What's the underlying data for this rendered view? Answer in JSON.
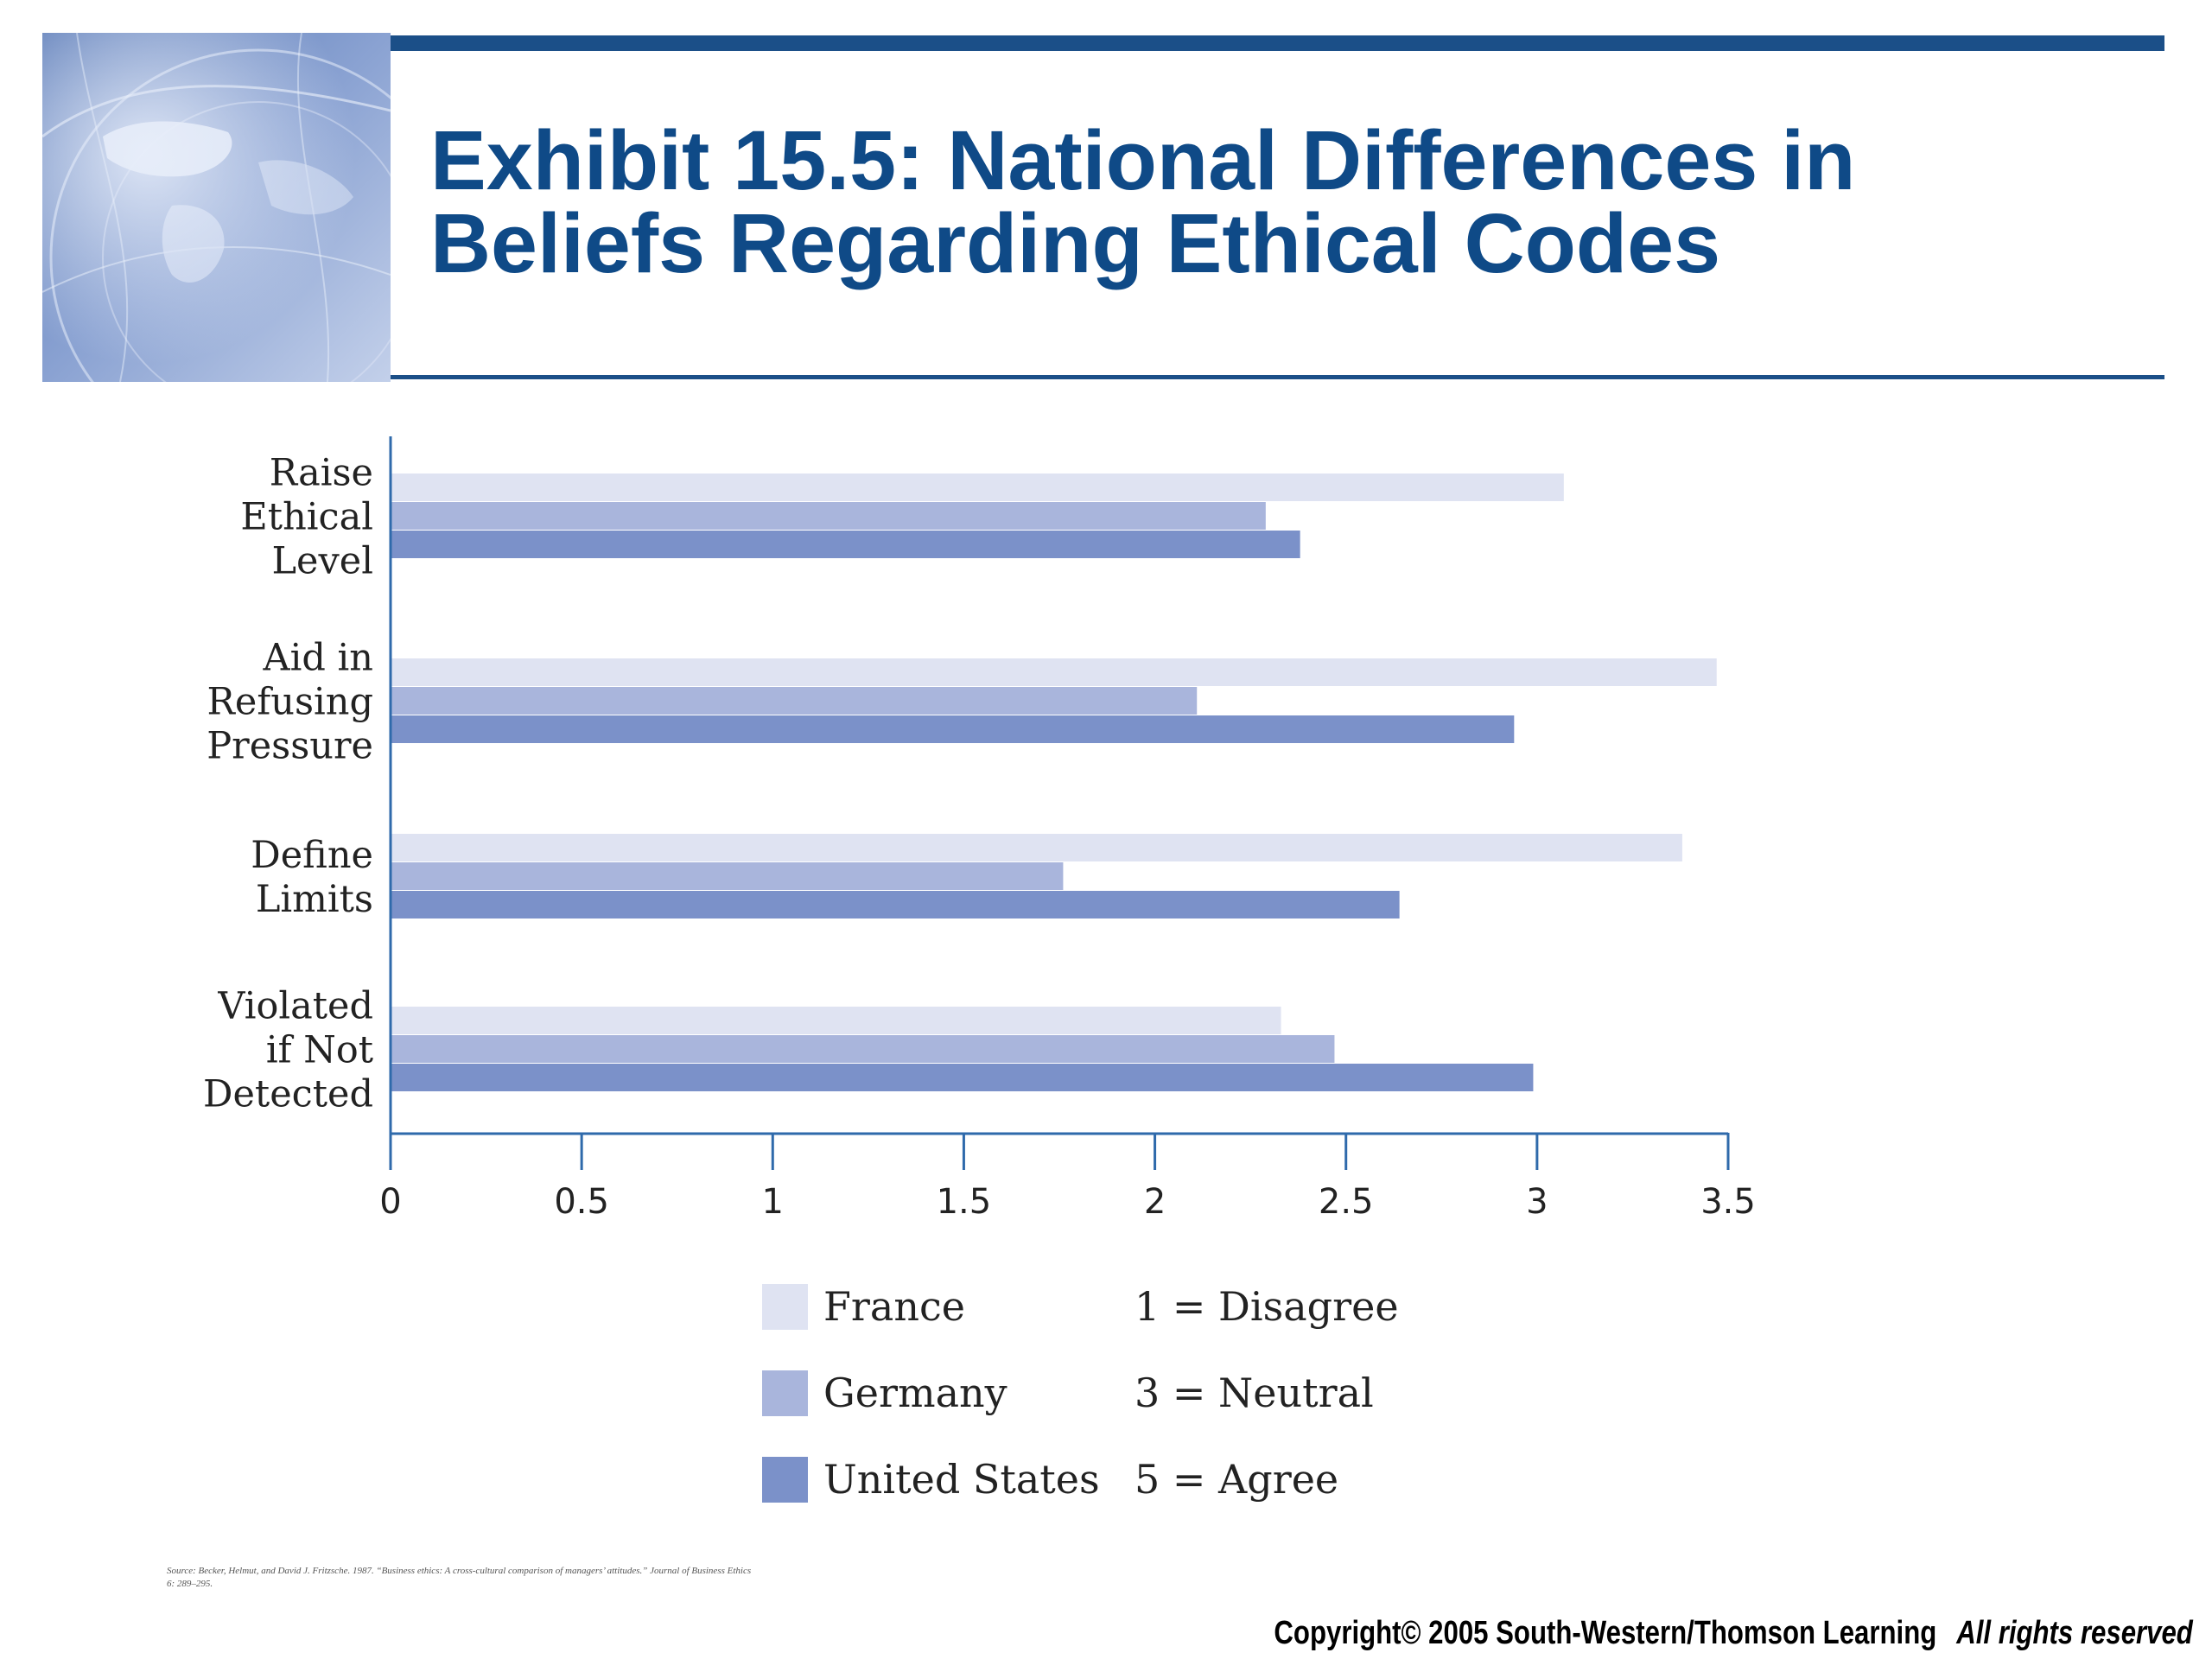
{
  "header": {
    "title_line1": "Exhibit 15.5: National Differences in",
    "title_line2": "Beliefs Regarding Ethical Codes"
  },
  "colors": {
    "title": "#0f4a87",
    "rule": "#1b4f88",
    "axis": "#2f6aab",
    "france": "#dfe3f2",
    "germany": "#a9b5dc",
    "united_states": "#7b91c9"
  },
  "icons": {
    "header_image": "globe-world-map-image"
  },
  "chart_data": {
    "type": "bar",
    "orientation": "horizontal",
    "categories": [
      [
        "Raise",
        "Ethical",
        "Level"
      ],
      [
        "Aid in",
        "Refusing",
        "Pressure"
      ],
      [
        "Define",
        "Limits"
      ],
      [
        "Violated",
        "if Not",
        "Detected"
      ]
    ],
    "series": [
      {
        "name": "France",
        "values": [
          3.07,
          3.47,
          3.38,
          2.33
        ]
      },
      {
        "name": "Germany",
        "values": [
          2.29,
          2.11,
          1.76,
          2.47
        ]
      },
      {
        "name": "United States",
        "values": [
          2.38,
          2.94,
          2.64,
          2.99
        ]
      }
    ],
    "xlim": [
      0,
      3.5
    ],
    "xticks": [
      "0",
      "0.5",
      "1",
      "1.5",
      "2",
      "2.5",
      "3",
      "3.5"
    ],
    "grid": false,
    "legend": {
      "position": "bottom",
      "entries": [
        "France",
        "Germany",
        "United States"
      ],
      "scale_notes": [
        "1 = Disagree",
        "3 = Neutral",
        "5 = Agree"
      ]
    }
  },
  "footer": {
    "source_line1": "Source: Becker, Helmut, and David J. Fritzsche. 1987. “Business ethics: A cross-cultural comparison of managers’ attitudes.” Journal of Business Ethics",
    "source_line2": "6: 289–295.",
    "copyright": "Copyright© 2005 South-Western/Thomson Learning",
    "rights": "All rights reserved"
  }
}
